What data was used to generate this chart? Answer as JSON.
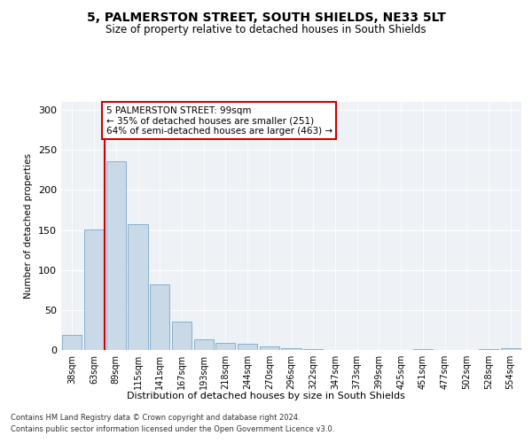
{
  "title": "5, PALMERSTON STREET, SOUTH SHIELDS, NE33 5LT",
  "subtitle": "Size of property relative to detached houses in South Shields",
  "xlabel": "Distribution of detached houses by size in South Shields",
  "ylabel": "Number of detached properties",
  "bar_labels": [
    "38sqm",
    "63sqm",
    "89sqm",
    "115sqm",
    "141sqm",
    "167sqm",
    "193sqm",
    "218sqm",
    "244sqm",
    "270sqm",
    "296sqm",
    "322sqm",
    "347sqm",
    "373sqm",
    "399sqm",
    "425sqm",
    "451sqm",
    "477sqm",
    "502sqm",
    "528sqm",
    "554sqm"
  ],
  "bar_values": [
    19,
    151,
    236,
    157,
    82,
    35,
    13,
    9,
    8,
    4,
    2,
    1,
    0,
    0,
    0,
    0,
    1,
    0,
    0,
    1,
    2
  ],
  "bar_color": "#c9d9e8",
  "bar_edge_color": "#7aa8c9",
  "vline_color": "#cc0000",
  "annotation_text": "5 PALMERSTON STREET: 99sqm\n← 35% of detached houses are smaller (251)\n64% of semi-detached houses are larger (463) →",
  "ylim": [
    0,
    310
  ],
  "yticks": [
    0,
    50,
    100,
    150,
    200,
    250,
    300
  ],
  "footer_line1": "Contains HM Land Registry data © Crown copyright and database right 2024.",
  "footer_line2": "Contains public sector information licensed under the Open Government Licence v3.0.",
  "bg_color": "#ffffff",
  "plot_bg_color": "#eef2f7",
  "title_fontsize": 10,
  "subtitle_fontsize": 8.5,
  "annotation_fontsize": 7.5,
  "ylabel_fontsize": 7.5,
  "xlabel_fontsize": 8,
  "tick_fontsize": 7,
  "footer_fontsize": 6
}
